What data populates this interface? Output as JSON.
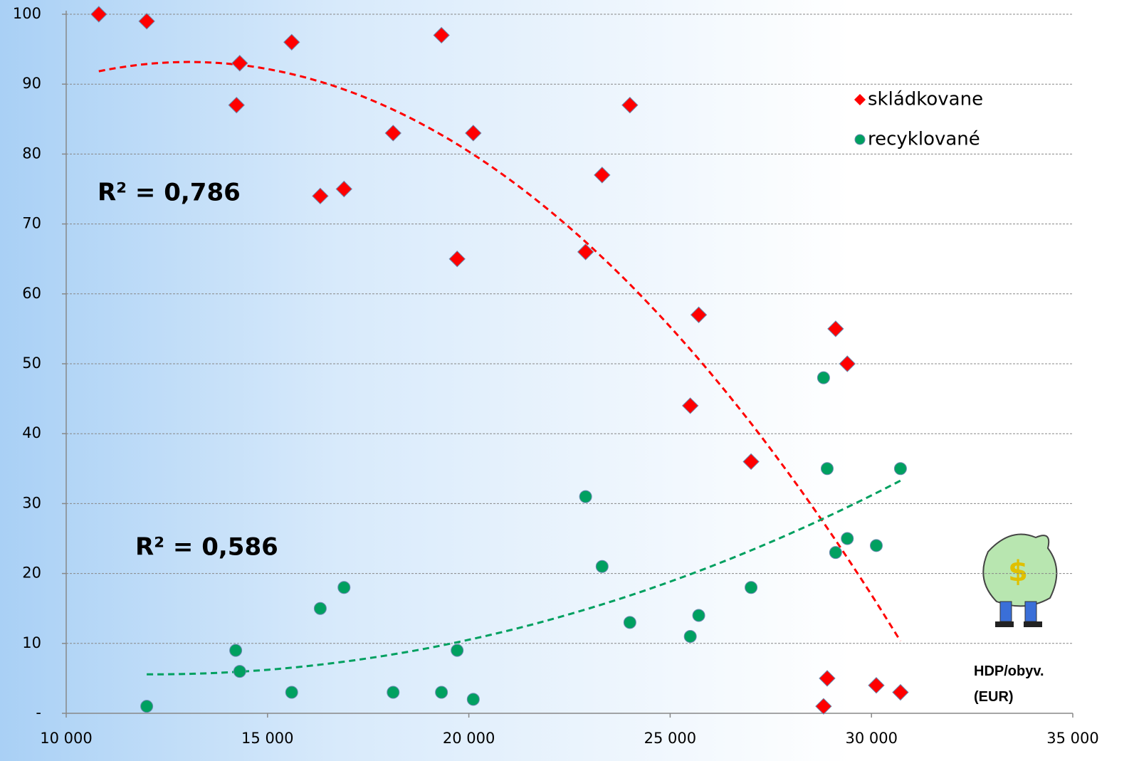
{
  "chart_data": {
    "type": "scatter",
    "x_label": "HDP/obyv. (EUR)",
    "xlim": [
      10000,
      35000
    ],
    "xticks": [
      {
        "value": 10000,
        "label": "10 000"
      },
      {
        "value": 15000,
        "label": "15 000"
      },
      {
        "value": 20000,
        "label": "20 000"
      },
      {
        "value": 25000,
        "label": "25 000"
      },
      {
        "value": 30000,
        "label": "30 000"
      },
      {
        "value": 35000,
        "label": "35 000"
      }
    ],
    "ylim": [
      0,
      100
    ],
    "yticks": [
      {
        "value": 0,
        "label": "-"
      },
      10,
      20,
      30,
      40,
      50,
      60,
      70,
      80,
      90,
      100
    ],
    "grid": true,
    "legend": "top-right",
    "trendline": "polynomial",
    "series": [
      {
        "name": "skládkovane",
        "color": "#ff0000",
        "marker": "diamond",
        "x": [
          10810,
          12000,
          14310,
          14230,
          15600,
          16310,
          16900,
          18120,
          19320,
          19710,
          20110,
          22900,
          23310,
          24000,
          25500,
          25710,
          27010,
          28810,
          28900,
          29110,
          29400,
          30120,
          30720
        ],
        "values": [
          100,
          99,
          93,
          87,
          96,
          74,
          75,
          83,
          97,
          65,
          83,
          66,
          77,
          87,
          44,
          57,
          36,
          1,
          5,
          55,
          50,
          4,
          3
        ]
      },
      {
        "name": "recyklované",
        "color": "#00a060",
        "marker": "circle",
        "x": [
          12000,
          14210,
          14310,
          15600,
          16310,
          16900,
          18120,
          19320,
          19710,
          20110,
          22900,
          23310,
          24000,
          25500,
          25710,
          27010,
          28810,
          28900,
          29110,
          29400,
          30120,
          30720
        ],
        "values": [
          1,
          9,
          6,
          3,
          15,
          18,
          3,
          3,
          9,
          2,
          31,
          21,
          13,
          11,
          14,
          18,
          48,
          35,
          23,
          25,
          24,
          35
        ]
      }
    ],
    "annotations": [
      {
        "text": "R² = 0,786",
        "color": "#ff0000"
      },
      {
        "text": "R² = 0,586",
        "color": "#1a9a3a"
      }
    ]
  }
}
